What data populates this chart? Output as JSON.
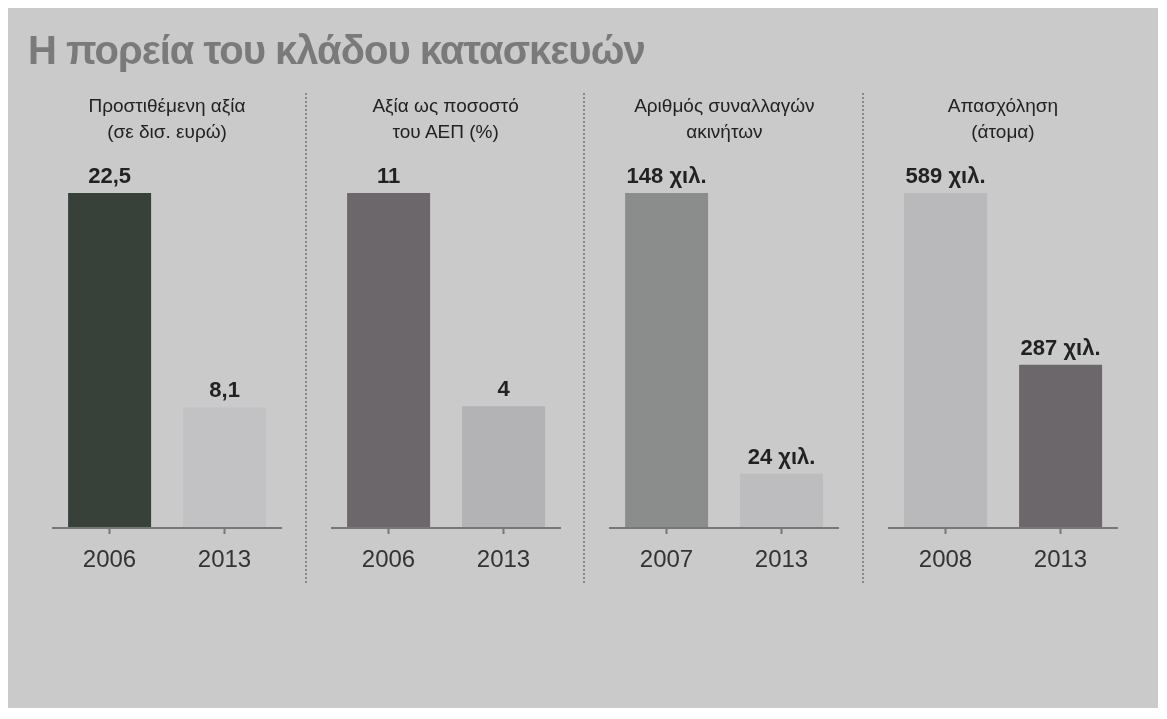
{
  "chart_data": [
    {
      "type": "bar",
      "annotations": [
        "Η πορεία του κλάδου κατασκευών"
      ],
      "title": "Προστιθέμενη αξία\n(σε δισ. ευρώ)",
      "categories": [
        "2006",
        "2013"
      ],
      "values": [
        22.5,
        8.1
      ],
      "colors": [
        "#38403a",
        "#c2c2c4"
      ],
      "value_labels": [
        "22,5",
        "8,1"
      ]
    },
    {
      "type": "bar",
      "title": "Αξία ως ποσοστό\nτου ΑΕΠ (%)",
      "categories": [
        "2006",
        "2013"
      ],
      "values": [
        11,
        4
      ],
      "colors": [
        "#6c676b",
        "#b3b3b5"
      ],
      "value_labels": [
        "11",
        "4"
      ]
    },
    {
      "type": "bar",
      "title": "Αριθμός συναλλαγών\nακινήτων",
      "categories": [
        "2007",
        "2013"
      ],
      "values": [
        148,
        24
      ],
      "colors": [
        "#8b8d8d",
        "#bdbdbf"
      ],
      "value_labels": [
        "148 χιλ.",
        "24 χιλ."
      ]
    },
    {
      "type": "bar",
      "title": "Απασχόληση\n(άτομα)",
      "categories": [
        "2008",
        "2013"
      ],
      "values": [
        589,
        287
      ],
      "colors": [
        "#b9b9bc",
        "#6c676b"
      ],
      "value_labels": [
        "589 χιλ.",
        "287 χιλ."
      ]
    }
  ]
}
